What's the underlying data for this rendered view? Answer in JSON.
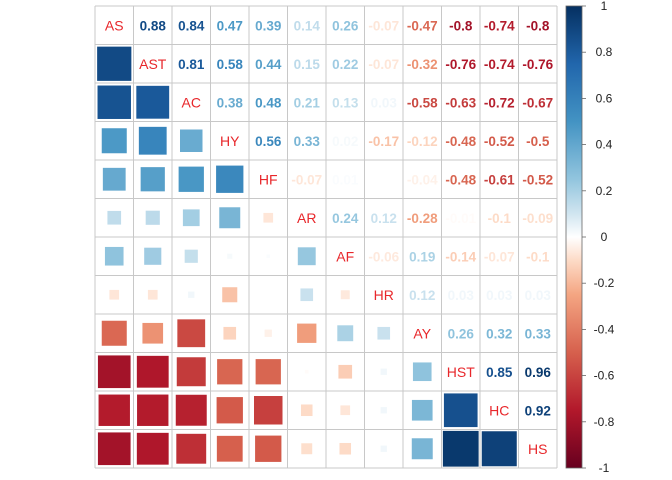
{
  "chart_data": {
    "type": "heatmap",
    "variables": [
      "AS",
      "AST",
      "AC",
      "HY",
      "HF",
      "AR",
      "AF",
      "HR",
      "AY",
      "HST",
      "HC",
      "HS"
    ],
    "matrix": [
      [
        1,
        0.88,
        0.84,
        0.47,
        0.39,
        0.14,
        0.26,
        -0.07,
        -0.47,
        -0.8,
        -0.74,
        -0.8
      ],
      [
        0.88,
        1,
        0.81,
        0.58,
        0.44,
        0.15,
        0.22,
        -0.07,
        -0.32,
        -0.76,
        -0.74,
        -0.76
      ],
      [
        0.84,
        0.81,
        1,
        0.38,
        0.48,
        0.21,
        0.13,
        0.03,
        -0.58,
        -0.63,
        -0.72,
        -0.67
      ],
      [
        0.47,
        0.58,
        0.38,
        1,
        0.56,
        0.33,
        0.02,
        -0.17,
        -0.12,
        -0.48,
        -0.52,
        -0.5
      ],
      [
        0.39,
        0.44,
        0.48,
        0.56,
        1,
        -0.07,
        0.01,
        0.0,
        -0.04,
        -0.48,
        -0.61,
        -0.52
      ],
      [
        0.14,
        0.15,
        0.21,
        0.33,
        -0.07,
        1,
        0.24,
        0.12,
        -0.28,
        -0.01,
        -0.1,
        -0.09
      ],
      [
        0.26,
        0.22,
        0.13,
        0.02,
        0.01,
        0.24,
        1,
        -0.06,
        0.19,
        -0.14,
        -0.07,
        -0.1
      ],
      [
        -0.07,
        -0.07,
        0.03,
        -0.17,
        0.0,
        0.12,
        -0.06,
        1,
        0.12,
        0.03,
        0.03,
        0.03
      ],
      [
        -0.47,
        -0.32,
        -0.58,
        -0.12,
        -0.04,
        -0.28,
        0.19,
        0.12,
        1,
        0.26,
        0.32,
        0.33
      ],
      [
        -0.8,
        -0.76,
        -0.63,
        -0.48,
        -0.48,
        -0.01,
        -0.14,
        0.03,
        0.26,
        1,
        0.85,
        0.96
      ],
      [
        -0.74,
        -0.74,
        -0.72,
        -0.52,
        -0.61,
        -0.1,
        -0.07,
        0.03,
        0.32,
        0.85,
        1,
        0.92
      ],
      [
        -0.8,
        -0.76,
        -0.67,
        -0.5,
        -0.52,
        -0.09,
        -0.1,
        0.03,
        0.33,
        0.96,
        0.92,
        1
      ]
    ],
    "upper_labels": [
      [
        "0.88",
        "0.84",
        "0.47",
        "0.39",
        "0.14",
        "0.26",
        "-0.07",
        "-0.47",
        "-0.8",
        "-0.74",
        "-0.8"
      ],
      [
        "0.81",
        "0.58",
        "0.44",
        "0.15",
        "0.22",
        "-0.07",
        "-0.32",
        "-0.76",
        "-0.74",
        "-0.76"
      ],
      [
        "0.38",
        "0.48",
        "0.21",
        "0.13",
        "0.03",
        "-0.58",
        "-0.63",
        "-0.72",
        "-0.67"
      ],
      [
        "0.56",
        "0.33",
        "0.02",
        "-0.17",
        "-0.12",
        "-0.48",
        "-0.52",
        "-0.5"
      ],
      [
        "-0.07",
        "0.01",
        "0",
        "-0.04",
        "-0.48",
        "-0.61",
        "-0.52"
      ],
      [
        "0.24",
        "0.12",
        "-0.28",
        "-0.01",
        "-0.1",
        "-0.09"
      ],
      [
        "-0.06",
        "0.19",
        "-0.14",
        "-0.07",
        "-0.1"
      ],
      [
        "0.12",
        "0.03",
        "0.03",
        "0.03"
      ],
      [
        "0.26",
        "0.32",
        "0.33"
      ],
      [
        "0.85",
        "0.96"
      ],
      [
        "0.92"
      ]
    ],
    "lower_glyph": "square",
    "upper_glyph": "number",
    "color_scale": {
      "min": -1,
      "max": 1,
      "stops": [
        {
          "value": -1,
          "color": "#67001F"
        },
        {
          "value": -0.75,
          "color": "#B2182B"
        },
        {
          "value": -0.5,
          "color": "#D6604D"
        },
        {
          "value": -0.25,
          "color": "#F4A582"
        },
        {
          "value": -0.1,
          "color": "#FDDBC7"
        },
        {
          "value": 0,
          "color": "#FFFFFF"
        },
        {
          "value": 0.1,
          "color": "#D1E5F0"
        },
        {
          "value": 0.25,
          "color": "#92C5DE"
        },
        {
          "value": 0.5,
          "color": "#4393C3"
        },
        {
          "value": 0.75,
          "color": "#2166AC"
        },
        {
          "value": 1,
          "color": "#053061"
        }
      ]
    },
    "diagonal_label_color": "#E8272B",
    "colorbar_ticks": [
      "1",
      "0.8",
      "0.6",
      "0.4",
      "0.2",
      "0",
      "-0.2",
      "-0.4",
      "-0.6",
      "-0.8",
      "-1"
    ],
    "grid": true
  }
}
